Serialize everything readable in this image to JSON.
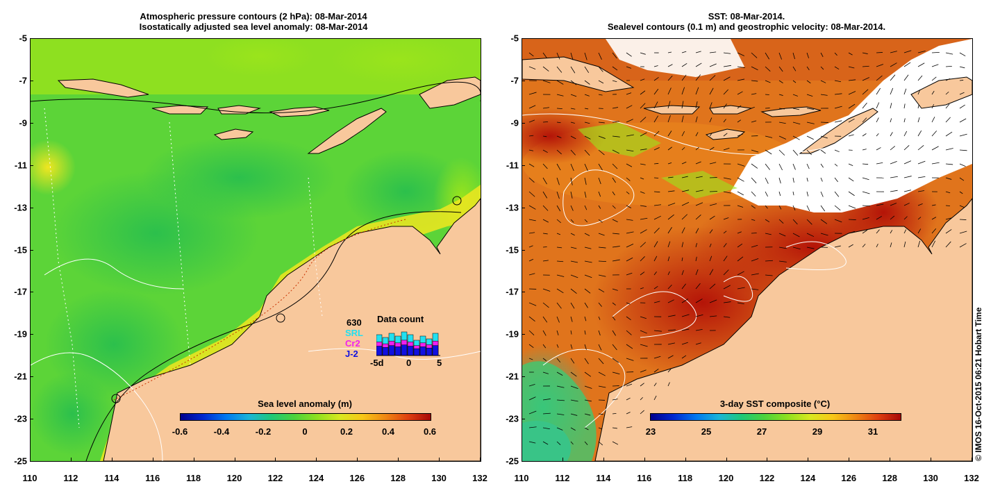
{
  "left_panel": {
    "title_line1": "Atmospheric pressure contours (2 hPa): 08-Mar-2014",
    "title_line2": "Isostatically adjusted sea level anomaly: 08-Mar-2014",
    "colorbar_title": "Sea level anomaly (m)",
    "colorbar_ticks": [
      "-0.6",
      "-0.4",
      "-0.2",
      "0",
      "0.2",
      "0.4",
      "0.6"
    ],
    "colors": {
      "land": "#f8c89c",
      "ocean_main": "#4cd23c",
      "ocean_light": "#8ee020",
      "ocean_yellow": "#f2ea20"
    },
    "data_count": {
      "title": "Data count",
      "total": "630",
      "missions": [
        {
          "name": "SRL",
          "color": "#22e0f0"
        },
        {
          "name": "Cr2",
          "color": "#f020f0"
        },
        {
          "name": "J-2",
          "color": "#1010e0"
        }
      ],
      "x_ticks": [
        "-5d",
        "0",
        "5"
      ]
    }
  },
  "right_panel": {
    "title_line1": "SST: 08-Mar-2014.",
    "title_line2": "Sealevel contours (0.1 m) and geostrophic velocity: 08-Mar-2014.",
    "colorbar_title": "3-day SST composite (°C)",
    "colorbar_ticks": [
      "23",
      "25",
      "27",
      "29",
      "31"
    ],
    "colors": {
      "land": "#f8c89c",
      "sst_warm": "#c82810",
      "sst_orange": "#e46414",
      "sst_hot": "#b41408"
    }
  },
  "axes": {
    "x_ticks": [
      "110",
      "112",
      "114",
      "116",
      "118",
      "120",
      "122",
      "124",
      "126",
      "128",
      "130",
      "132"
    ],
    "y_ticks": [
      "-5",
      "-7",
      "-9",
      "-11",
      "-13",
      "-15",
      "-17",
      "-19",
      "-21",
      "-23",
      "-25"
    ]
  },
  "copyright": "© IMOS 16-Oct-2015 06:21 Hobart Time"
}
